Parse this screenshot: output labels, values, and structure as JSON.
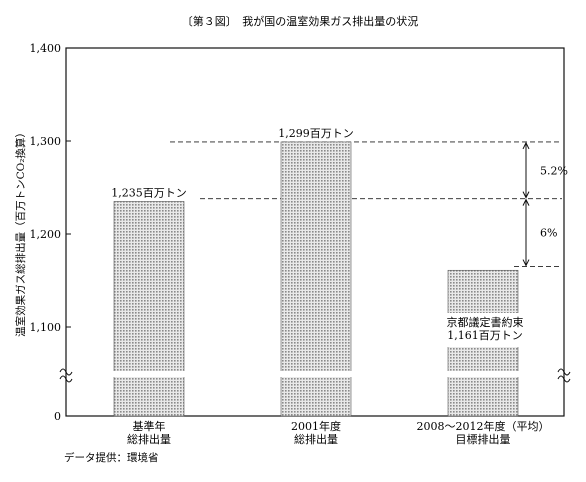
{
  "chart_data": {
    "type": "bar",
    "title": "〔第３図〕　我が国の温室効果ガス排出量の状況",
    "ylabel": "温室効果ガス総排出量（百万トンCO₂換算）",
    "y_ticks": [
      "0",
      "1,100",
      "1,200",
      "1,300",
      "1,400"
    ],
    "ylim": [
      1050,
      1400
    ],
    "axis_break": true,
    "categories": [
      [
        "基準年",
        "総排出量"
      ],
      [
        "2001年度",
        "総排出量"
      ],
      [
        "2008～2012年度（平均）",
        "目標排出量"
      ]
    ],
    "values": [
      1235,
      1299,
      1161
    ],
    "bar_labels": [
      [
        "1,235百万トン"
      ],
      [
        "1,299百万トン"
      ],
      [
        "京都議定書約束",
        "1,161百万トン"
      ]
    ],
    "annotations": [
      {
        "text": "5.2%",
        "from": 1299,
        "to": 1238
      },
      {
        "text": "6%",
        "from": 1238,
        "to": 1165
      }
    ],
    "source": "データ提供：環境省",
    "colors": {
      "bar": "#b9b9b9",
      "axis": "#111111"
    }
  }
}
